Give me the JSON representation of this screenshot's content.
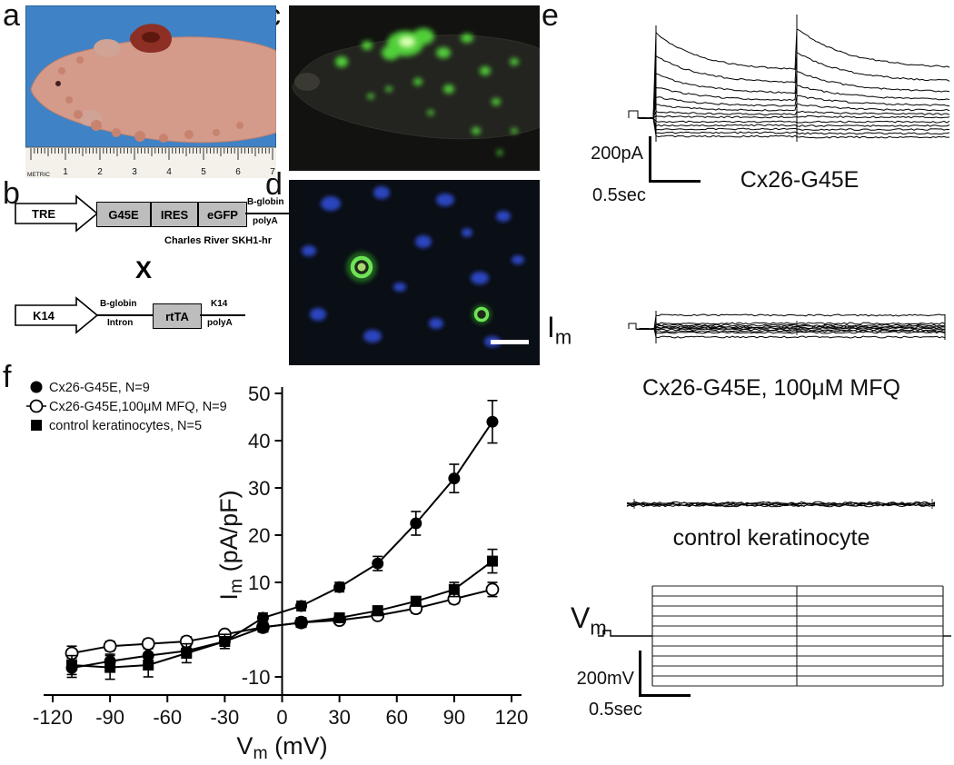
{
  "figure": {
    "background": "#ffffff"
  },
  "panels": {
    "a": {
      "label": "a",
      "ruler": {
        "unit_label": "METRIC",
        "numbers": [
          "1",
          "2",
          "3",
          "4",
          "5",
          "6",
          "7"
        ]
      }
    },
    "b": {
      "label": "b",
      "cross_symbol": "X",
      "construct_top": {
        "promoter": "TRE",
        "boxes": [
          "G45E",
          "IRES",
          "eGFP"
        ],
        "tail_line1": "B-globin",
        "tail_line2": "polyA",
        "caption": "Charles River SKH1-hr"
      },
      "construct_bottom": {
        "promoter": "K14",
        "left_line1": "B-globin",
        "left_line2": "Intron",
        "box": "rtTA",
        "tail_line1": "K14",
        "tail_line2": "polyA"
      }
    },
    "c": {
      "label": "c"
    },
    "d": {
      "label": "d"
    },
    "e": {
      "label": "e",
      "top_trace": {
        "title": "Cx26-G45E",
        "scale_y": "200pA",
        "scale_x": "0.5sec",
        "amps": [
          52,
          38,
          27,
          19,
          13,
          8,
          4,
          1,
          -4,
          -8,
          -12,
          -16,
          -20
        ]
      },
      "mfq_trace": {
        "title": "Cx26-G45E, 100μM MFQ",
        "side_label": {
          "pre": "I",
          "sub": "m"
        },
        "amps": [
          15,
          6,
          4,
          2.5,
          1.5,
          0.5,
          -1,
          -2.5,
          -4,
          -9
        ]
      },
      "control_trace": {
        "title": "control keratinocyte",
        "amps": [
          1.6,
          0.8,
          0,
          -0.8,
          -1.6
        ]
      },
      "vm_trace": {
        "side_label": {
          "pre": "V",
          "sub": "m"
        },
        "scale_y": "200mV",
        "scale_x": "0.5sec",
        "n_steps": 11
      }
    },
    "f": {
      "label": "f"
    }
  },
  "chart_data": {
    "type": "scatter",
    "title": "",
    "xlabel": {
      "pre": "V",
      "sub": "m",
      "post": " (mV)"
    },
    "ylabel": {
      "pre": "I",
      "sub": "m",
      "post": " (pA/pF)"
    },
    "xlim": [
      -130,
      130
    ],
    "ylim": [
      -14,
      52
    ],
    "x_ticks": [
      -120,
      -90,
      -60,
      -30,
      0,
      30,
      60,
      90,
      120
    ],
    "y_ticks": [
      -10,
      10,
      20,
      30,
      40,
      50
    ],
    "grid": false,
    "legend_position": "top-left",
    "x": [
      -110,
      -90,
      -70,
      -50,
      -30,
      -10,
      10,
      30,
      50,
      70,
      90,
      110
    ],
    "series": [
      {
        "name": "Cx26-G45E, N=9",
        "marker": "filled-circle",
        "y": [
          -8.1,
          -6.7,
          -5.5,
          -4.5,
          -2.5,
          2.5,
          5.0,
          9.0,
          14.0,
          22.5,
          32.0,
          44.0
        ],
        "err": [
          2.0,
          1.5,
          1.5,
          1.5,
          1.0,
          1.0,
          1.0,
          1.0,
          1.5,
          2.5,
          3.0,
          4.5
        ]
      },
      {
        "name": "Cx26-G45E,100μM MFQ, N=9",
        "marker": "open-circle",
        "y": [
          -5.0,
          -3.5,
          -3.0,
          -2.5,
          -1.0,
          0.5,
          1.5,
          2.0,
          3.0,
          4.5,
          6.5,
          8.5
        ],
        "err": [
          1.5,
          1.0,
          1.0,
          1.0,
          0.5,
          0.5,
          0.5,
          0.5,
          0.8,
          1.0,
          1.0,
          1.5
        ]
      },
      {
        "name": "control keratinocytes, N=5",
        "marker": "filled-square",
        "y": [
          -7.5,
          -8.0,
          -7.5,
          -5.0,
          -2.5,
          0.5,
          1.5,
          2.5,
          4.0,
          6.0,
          8.5,
          14.5
        ],
        "err": [
          2.0,
          2.5,
          2.5,
          2.0,
          1.5,
          0.5,
          0.5,
          0.5,
          1.0,
          1.0,
          1.5,
          2.5
        ]
      }
    ]
  }
}
